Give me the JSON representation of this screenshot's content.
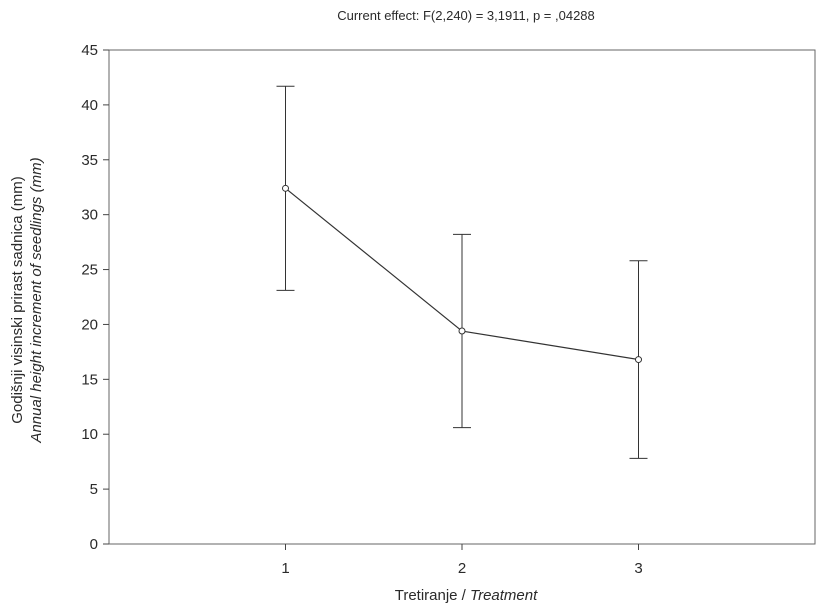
{
  "chart_data": {
    "type": "line",
    "title": "Current effect: F(2,240) = 3,1911, p = ,04288",
    "xlabel": {
      "main": "Tretiranje / ",
      "italic": "Treatment"
    },
    "ylabel": {
      "line1": "Godišnji visinski prirast sadnica (mm)",
      "line2": "Annual height increment of seedlings (mm)"
    },
    "categories": [
      "1",
      "2",
      "3"
    ],
    "x": [
      1,
      2,
      3
    ],
    "xlim": [
      0,
      4
    ],
    "ylim": [
      0,
      45
    ],
    "yticks": [
      0,
      5,
      10,
      15,
      20,
      25,
      30,
      35,
      40,
      45
    ],
    "series": [
      {
        "values": [
          32.4,
          19.4,
          16.8
        ],
        "lower": [
          23.1,
          10.6,
          7.8
        ],
        "upper": [
          41.7,
          28.2,
          25.8
        ]
      }
    ],
    "grid": false,
    "legend": "none"
  }
}
